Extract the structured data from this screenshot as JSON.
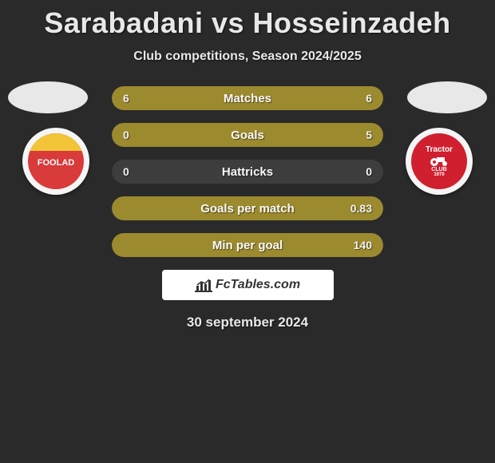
{
  "title": "Sarabadani vs Hosseinzadeh",
  "subtitle": "Club competitions, Season 2024/2025",
  "date": "30 september 2024",
  "brand": "FcTables.com",
  "colors": {
    "bar_bg": "#3d3d3d",
    "bar_left_fill": "#9c8a2e",
    "bar_right_fill": "#9c8a2e",
    "badge_left_bg": "#d93a3a",
    "badge_left_stripe": "#f2c538",
    "badge_right_bg": "#d01f2e",
    "badge_right_accent": "#ffffff"
  },
  "badge_left": {
    "name": "FOOLAD"
  },
  "badge_right": {
    "name": "Tractor",
    "sub": "CLUB",
    "year": "1970"
  },
  "rows": [
    {
      "label": "Matches",
      "left": "6",
      "right": "6",
      "left_pct": 50,
      "right_pct": 50
    },
    {
      "label": "Goals",
      "left": "0",
      "right": "5",
      "left_pct": 0,
      "right_pct": 100
    },
    {
      "label": "Hattricks",
      "left": "0",
      "right": "0",
      "left_pct": 0,
      "right_pct": 0
    },
    {
      "label": "Goals per match",
      "left": "",
      "right": "0.83",
      "left_pct": 0,
      "right_pct": 100
    },
    {
      "label": "Min per goal",
      "left": "",
      "right": "140",
      "left_pct": 0,
      "right_pct": 100
    }
  ]
}
